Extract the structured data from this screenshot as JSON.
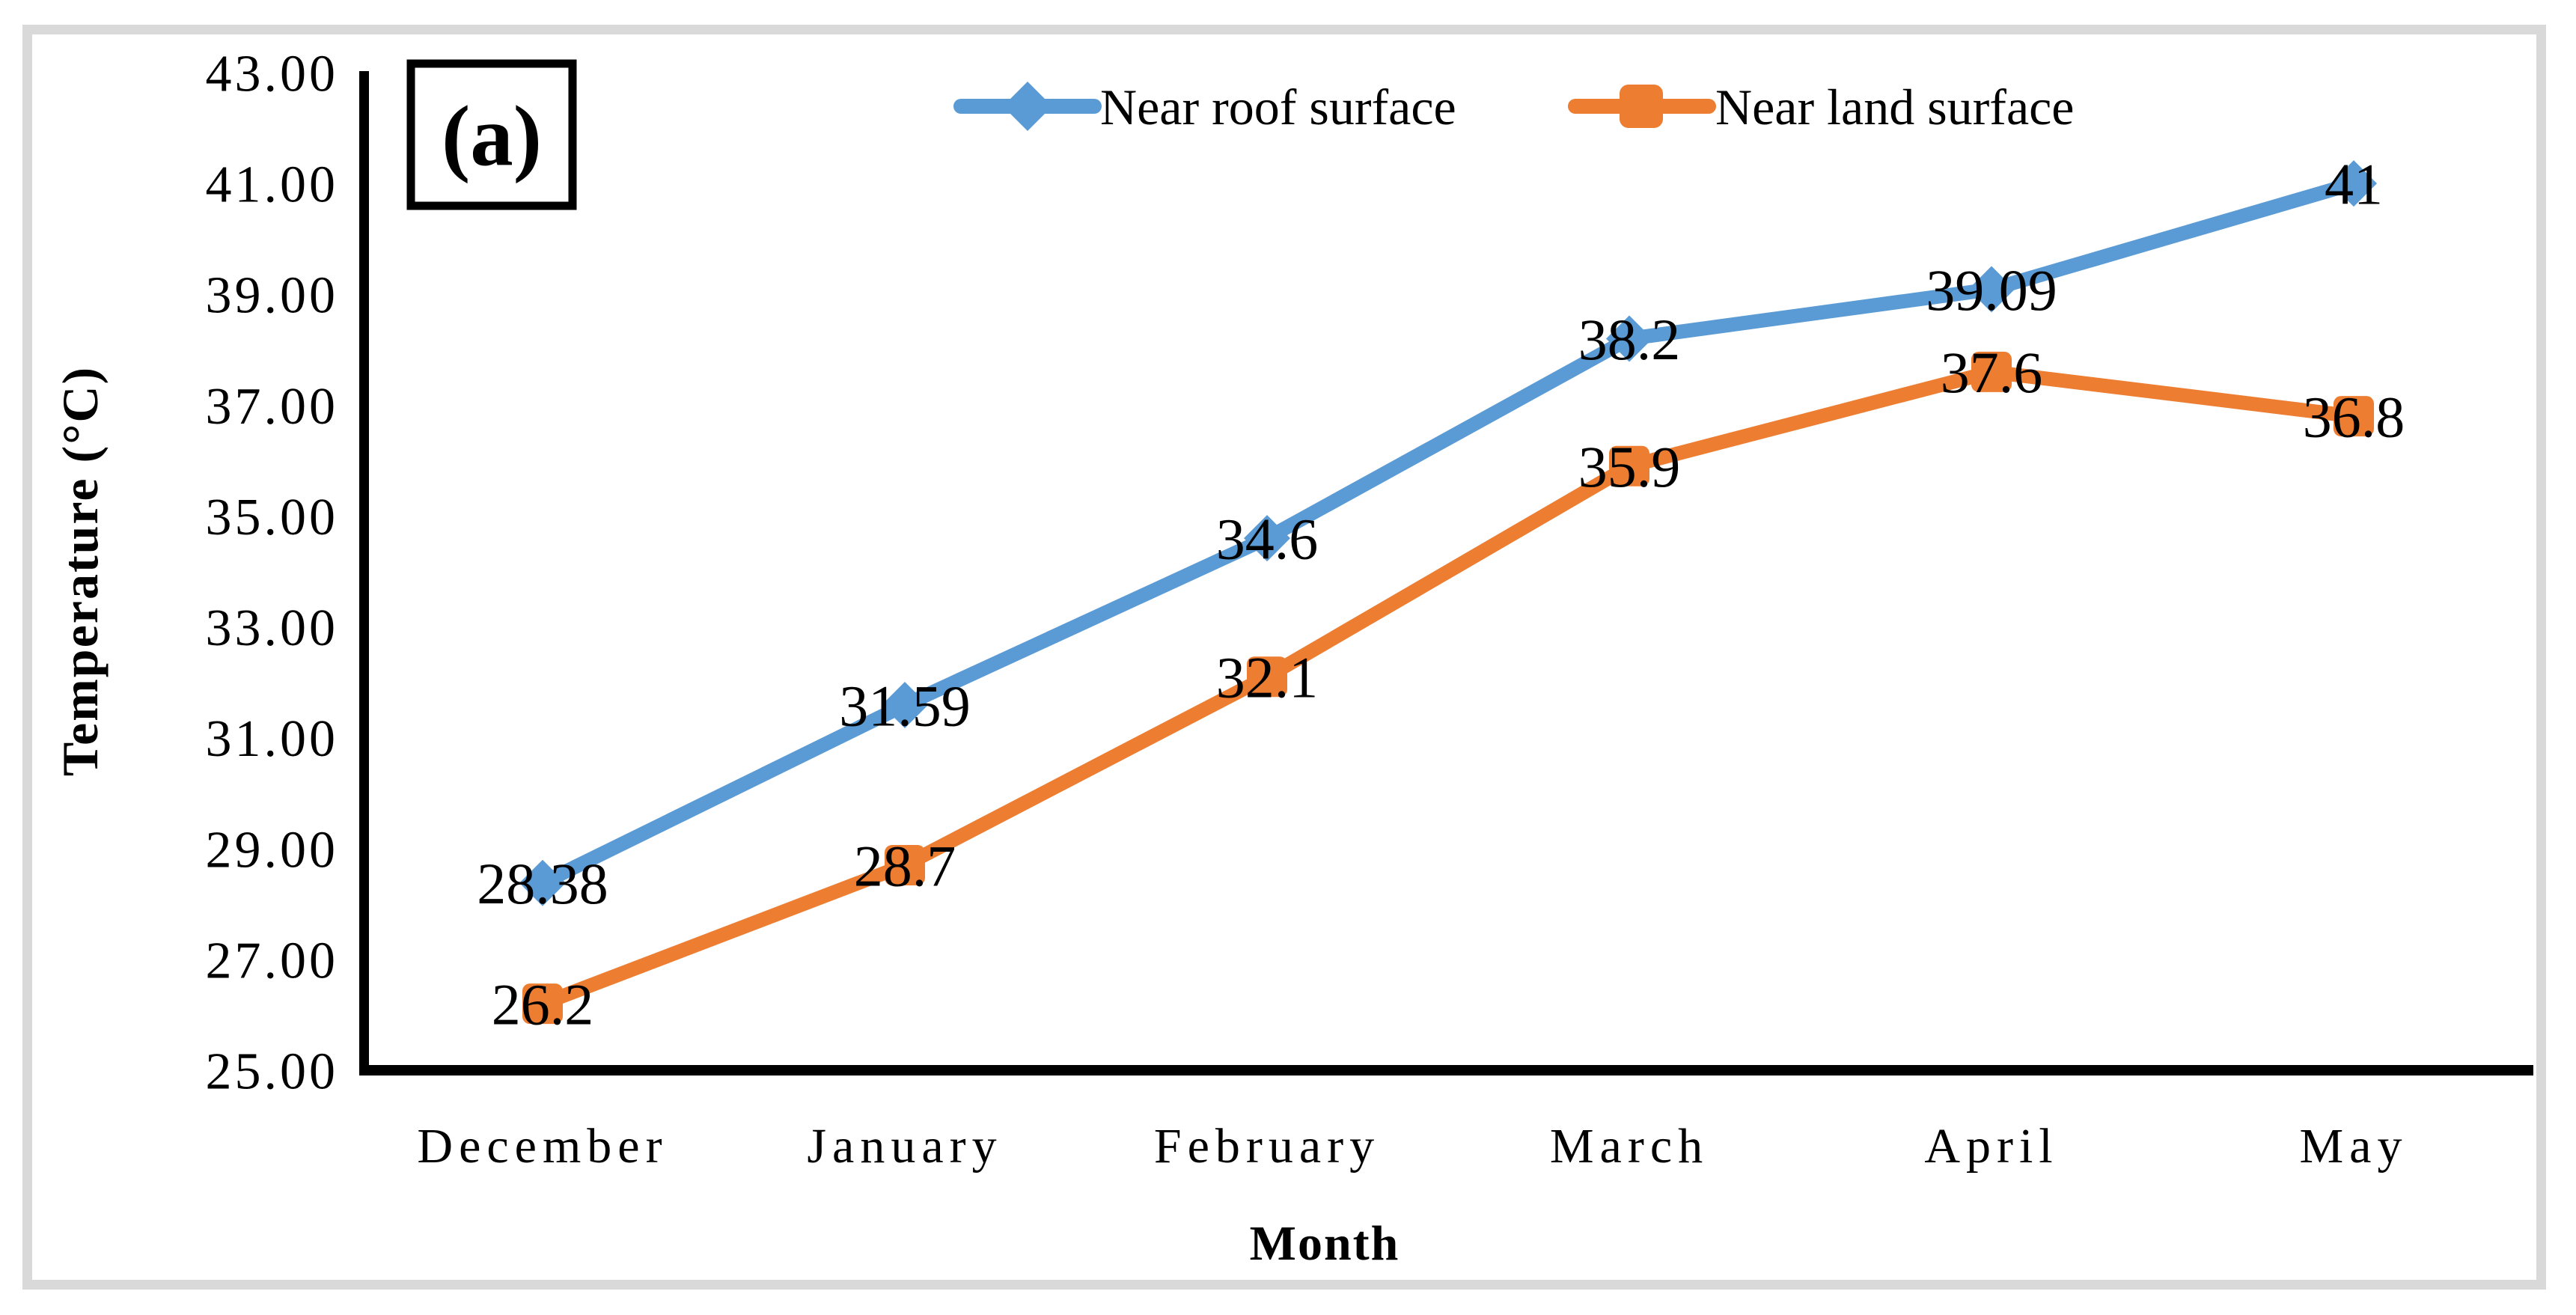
{
  "figure": {
    "border_color": "#d9d9d9",
    "background_color": "#ffffff",
    "panel_label": "(a)"
  },
  "chart_data": {
    "type": "line",
    "title": "",
    "categories": [
      "December",
      "January",
      "February",
      "March",
      "April",
      "May"
    ],
    "xlabel": "Month",
    "ylabel": "Temperature (°C)",
    "ylim": [
      25,
      43
    ],
    "ytick_step": 2,
    "ytick_labels": [
      "43.00",
      "41.00",
      "39.00",
      "37.00",
      "35.00",
      "33.00",
      "31.00",
      "29.00",
      "27.00",
      "25.00"
    ],
    "grid": false,
    "legend_position": "top-center",
    "axis_color": "#000000",
    "series": [
      {
        "name": "Near roof surface",
        "color": "#5b9bd5",
        "marker": "diamond",
        "values": [
          28.38,
          31.59,
          34.6,
          38.2,
          39.09,
          41
        ],
        "labels": [
          "28.38",
          "31.59",
          "34.6",
          "38.2",
          "39.09",
          "41"
        ]
      },
      {
        "name": "Near land surface",
        "color": "#ed7d31",
        "marker": "square",
        "values": [
          26.2,
          28.7,
          32.1,
          35.9,
          37.6,
          36.8
        ],
        "labels": [
          "26.2",
          "28.7",
          "32.1",
          "35.9",
          "37.6",
          "36.8"
        ]
      }
    ]
  }
}
